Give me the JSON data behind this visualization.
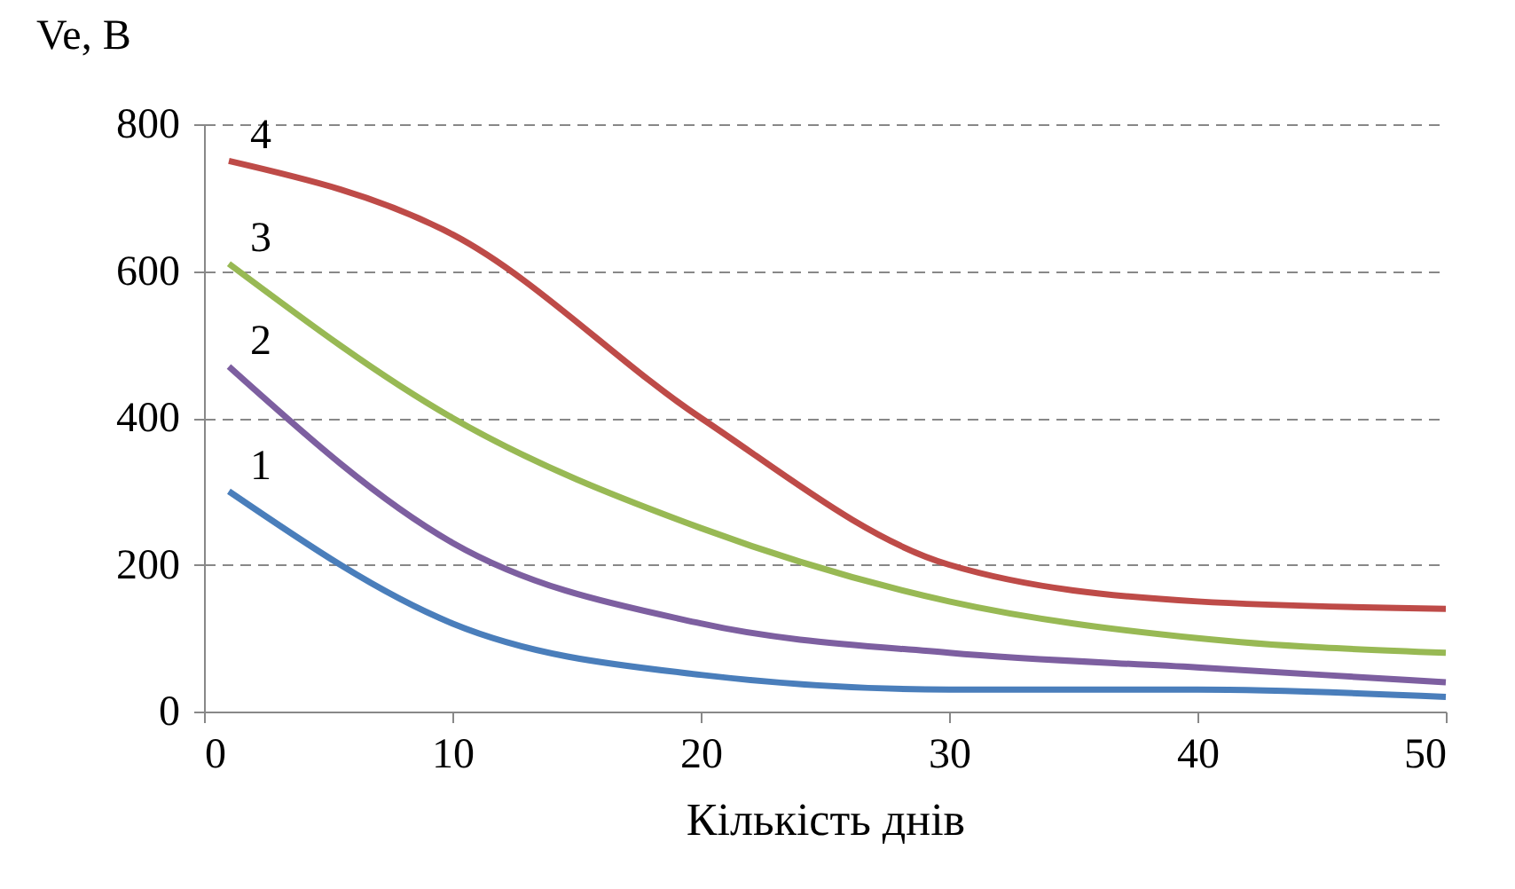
{
  "chart_data": {
    "type": "line",
    "xlabel": "Кількість днів",
    "ylabel": "Ve, В",
    "x": [
      1,
      10,
      20,
      30,
      40,
      50
    ],
    "series": [
      {
        "name": "1",
        "color": "#4a7ebb",
        "values": [
          300,
          120,
          50,
          30,
          30,
          20
        ]
      },
      {
        "name": "2",
        "color": "#7d5fa0",
        "values": [
          470,
          230,
          120,
          80,
          60,
          40
        ]
      },
      {
        "name": "3",
        "color": "#98b954",
        "values": [
          610,
          400,
          250,
          150,
          100,
          80
        ]
      },
      {
        "name": "4",
        "color": "#be4b48",
        "values": [
          750,
          650,
          400,
          200,
          150,
          140
        ]
      }
    ],
    "xlim": [
      0,
      50
    ],
    "xticks": [
      0,
      10,
      20,
      30,
      40,
      50
    ],
    "ylim": [
      0,
      800
    ],
    "yticks": [
      0,
      200,
      400,
      600,
      800
    ],
    "grid": "y",
    "legend": false,
    "marker": "none",
    "line_style": "solid"
  }
}
